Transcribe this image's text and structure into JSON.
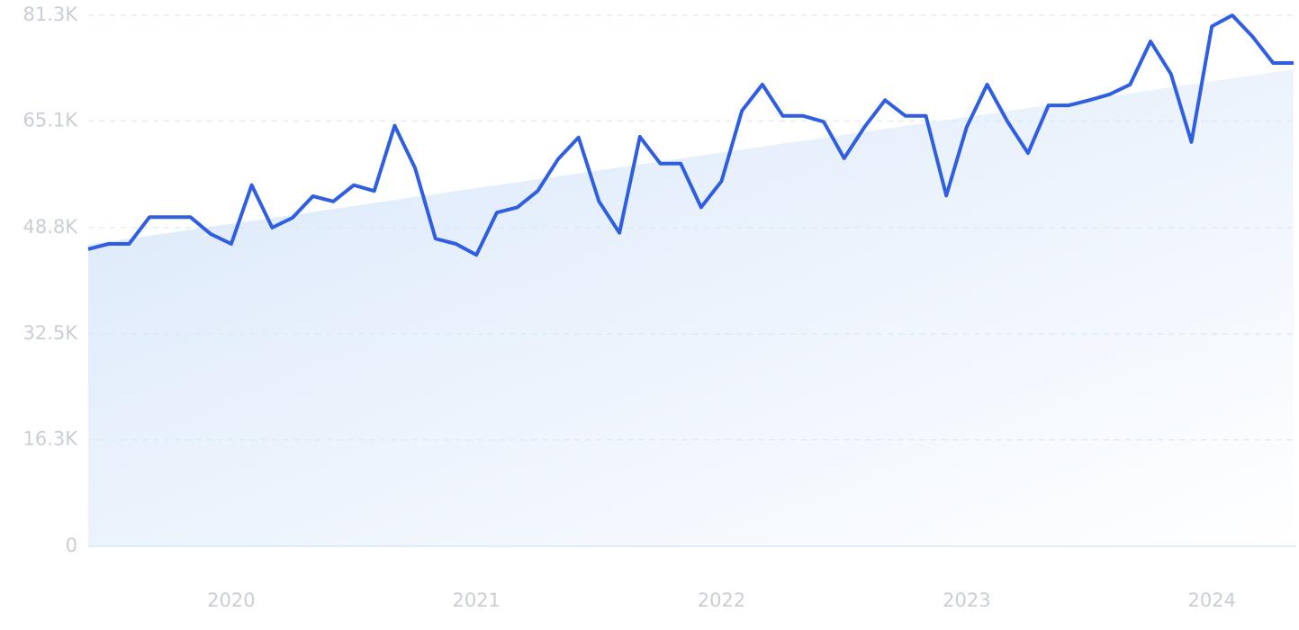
{
  "chart_data": {
    "type": "line",
    "categories": [
      null,
      null,
      null,
      null,
      null,
      null,
      null,
      "2020",
      null,
      null,
      null,
      null,
      null,
      null,
      null,
      null,
      null,
      null,
      null,
      "2021",
      null,
      null,
      null,
      null,
      null,
      null,
      null,
      null,
      null,
      null,
      null,
      "2022",
      null,
      null,
      null,
      null,
      null,
      null,
      null,
      null,
      null,
      null,
      null,
      "2023",
      null,
      null,
      null,
      null,
      null,
      null,
      null,
      null,
      null,
      null,
      null,
      "2024",
      null,
      null,
      null,
      null
    ],
    "series": [
      {
        "color": "#2f5fe0",
        "values": [
          45500,
          46300,
          46300,
          50400,
          50400,
          50400,
          47800,
          46300,
          55300,
          48800,
          50300,
          53600,
          52800,
          55300,
          54400,
          64400,
          57900,
          47100,
          46300,
          44600,
          51100,
          51900,
          54400,
          59300,
          62600,
          52800,
          48000,
          62700,
          58600,
          58600,
          51900,
          55900,
          66700,
          70700,
          65900,
          65900,
          65000,
          59400,
          64200,
          68300,
          65900,
          65900,
          53700,
          64200,
          70700,
          65000,
          60200,
          67500,
          67500,
          68300,
          69200,
          70700,
          77300,
          72300,
          61900,
          79600,
          81300,
          78000,
          74000,
          74000
        ]
      }
    ],
    "trend": {
      "start": 46200,
      "end": 73000
    },
    "ylim": [
      0,
      81300
    ],
    "yticks": [
      0,
      {
        "value": 16300,
        "label": "16.3K"
      },
      {
        "value": 32500,
        "label": "32.5K"
      },
      {
        "value": 48800,
        "label": "48.8K"
      },
      {
        "value": 65100,
        "label": "65.1K"
      },
      {
        "value": 81300,
        "label": "81.3K"
      }
    ],
    "grid": true
  }
}
